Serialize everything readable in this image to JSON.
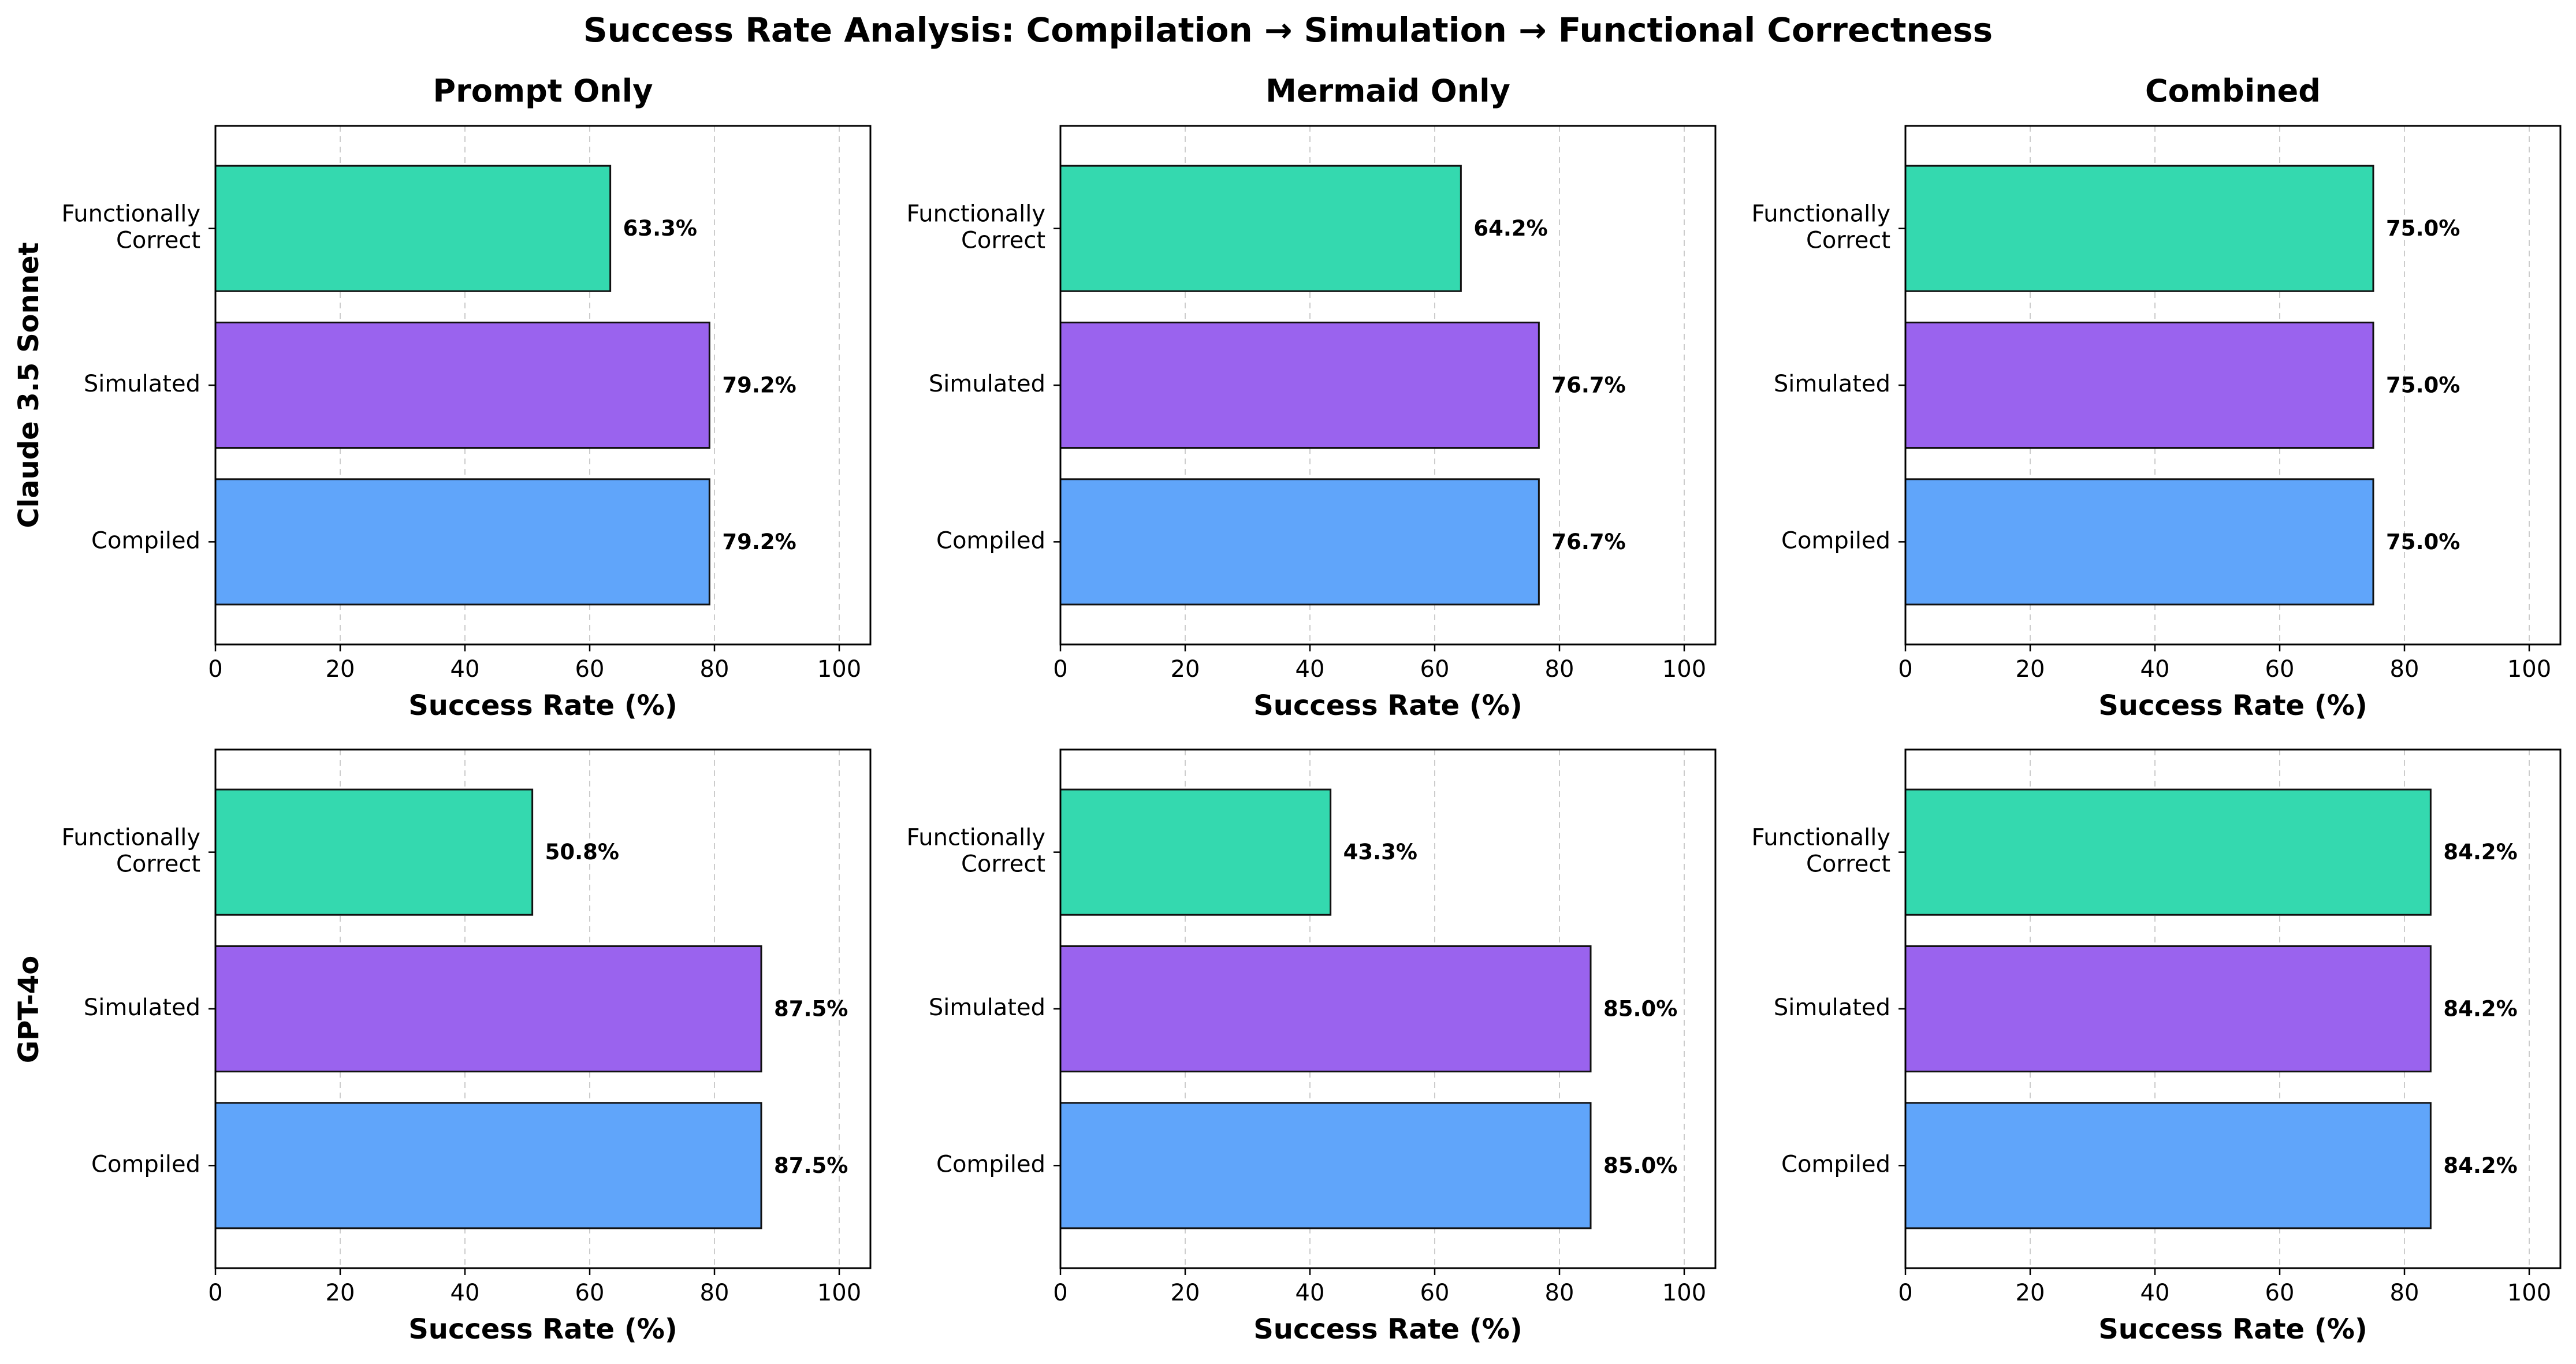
{
  "figure": {
    "title": "Success Rate Analysis: Compilation → Simulation → Functional Correctness"
  },
  "columns": [
    "Prompt Only",
    "Mermaid Only",
    "Combined"
  ],
  "rows": [
    "Claude 3.5 Sonnet",
    "GPT-4o"
  ],
  "colors": {
    "Compiled": "#60a5fa",
    "Simulated": "#9a63ee",
    "Functionally Correct": "#34d9af",
    "edge": "#111111",
    "grid": "#cccccc"
  },
  "chart_data": [
    {
      "type": "bar",
      "orientation": "horizontal",
      "row": "Claude 3.5 Sonnet",
      "title": "Prompt Only",
      "categories": [
        "Compiled",
        "Simulated",
        "Functionally Correct"
      ],
      "category_labels": [
        [
          "Compiled"
        ],
        [
          "Simulated"
        ],
        [
          "Functionally",
          "Correct"
        ]
      ],
      "values": [
        79.2,
        79.2,
        63.3
      ],
      "value_labels": [
        "79.2%",
        "79.2%",
        "63.3%"
      ],
      "xlabel": "Success Rate (%)",
      "xlim": [
        0,
        105
      ],
      "xticks": [
        0,
        20,
        40,
        60,
        80,
        100
      ],
      "grid": "x, dashed"
    },
    {
      "type": "bar",
      "orientation": "horizontal",
      "row": "Claude 3.5 Sonnet",
      "title": "Mermaid Only",
      "categories": [
        "Compiled",
        "Simulated",
        "Functionally Correct"
      ],
      "category_labels": [
        [
          "Compiled"
        ],
        [
          "Simulated"
        ],
        [
          "Functionally",
          "Correct"
        ]
      ],
      "values": [
        76.7,
        76.7,
        64.2
      ],
      "value_labels": [
        "76.7%",
        "76.7%",
        "64.2%"
      ],
      "xlabel": "Success Rate (%)",
      "xlim": [
        0,
        105
      ],
      "xticks": [
        0,
        20,
        40,
        60,
        80,
        100
      ],
      "grid": "x, dashed"
    },
    {
      "type": "bar",
      "orientation": "horizontal",
      "row": "Claude 3.5 Sonnet",
      "title": "Combined",
      "categories": [
        "Compiled",
        "Simulated",
        "Functionally Correct"
      ],
      "category_labels": [
        [
          "Compiled"
        ],
        [
          "Simulated"
        ],
        [
          "Functionally",
          "Correct"
        ]
      ],
      "values": [
        75.0,
        75.0,
        75.0
      ],
      "value_labels": [
        "75.0%",
        "75.0%",
        "75.0%"
      ],
      "xlabel": "Success Rate (%)",
      "xlim": [
        0,
        105
      ],
      "xticks": [
        0,
        20,
        40,
        60,
        80,
        100
      ],
      "grid": "x, dashed"
    },
    {
      "type": "bar",
      "orientation": "horizontal",
      "row": "GPT-4o",
      "title": "",
      "categories": [
        "Compiled",
        "Simulated",
        "Functionally Correct"
      ],
      "category_labels": [
        [
          "Compiled"
        ],
        [
          "Simulated"
        ],
        [
          "Functionally",
          "Correct"
        ]
      ],
      "values": [
        87.5,
        87.5,
        50.8
      ],
      "value_labels": [
        "87.5%",
        "87.5%",
        "50.8%"
      ],
      "xlabel": "Success Rate (%)",
      "xlim": [
        0,
        105
      ],
      "xticks": [
        0,
        20,
        40,
        60,
        80,
        100
      ],
      "grid": "x, dashed"
    },
    {
      "type": "bar",
      "orientation": "horizontal",
      "row": "GPT-4o",
      "title": "",
      "categories": [
        "Compiled",
        "Simulated",
        "Functionally Correct"
      ],
      "category_labels": [
        [
          "Compiled"
        ],
        [
          "Simulated"
        ],
        [
          "Functionally",
          "Correct"
        ]
      ],
      "values": [
        85.0,
        85.0,
        43.3
      ],
      "value_labels": [
        "85.0%",
        "85.0%",
        "43.3%"
      ],
      "xlabel": "Success Rate (%)",
      "xlim": [
        0,
        105
      ],
      "xticks": [
        0,
        20,
        40,
        60,
        80,
        100
      ],
      "grid": "x, dashed"
    },
    {
      "type": "bar",
      "orientation": "horizontal",
      "row": "GPT-4o",
      "title": "",
      "categories": [
        "Compiled",
        "Simulated",
        "Functionally Correct"
      ],
      "category_labels": [
        [
          "Compiled"
        ],
        [
          "Simulated"
        ],
        [
          "Functionally",
          "Correct"
        ]
      ],
      "values": [
        84.2,
        84.2,
        84.2
      ],
      "value_labels": [
        "84.2%",
        "84.2%",
        "84.2%"
      ],
      "xlabel": "Success Rate (%)",
      "xlim": [
        0,
        105
      ],
      "xticks": [
        0,
        20,
        40,
        60,
        80,
        100
      ],
      "grid": "x, dashed"
    }
  ]
}
